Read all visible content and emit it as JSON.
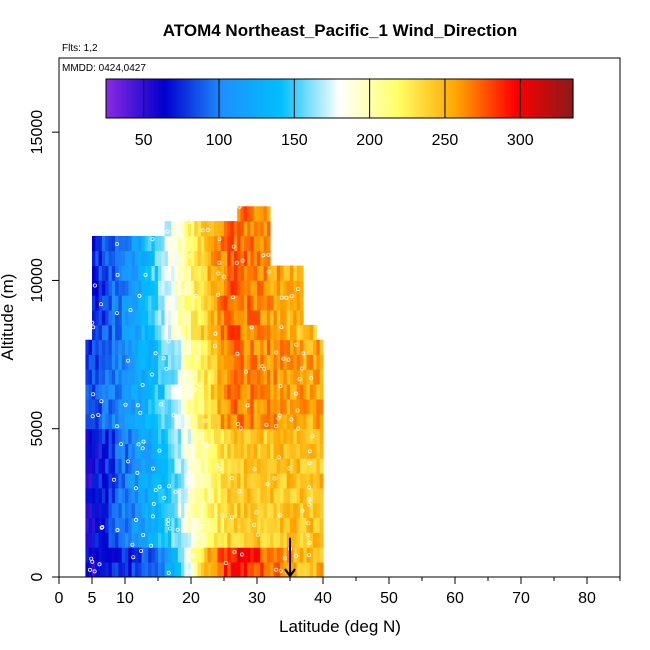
{
  "chart_data": {
    "type": "heatmap",
    "title": "ATOM4 Northeast_Pacific_1 Wind_Direction",
    "flights_note": "Flts: 1,2",
    "date_note": "MMDD: 0424,0427",
    "xlabel": "Latitude (deg N)",
    "ylabel": "Altitude (m)",
    "xlim": [
      0,
      85
    ],
    "ylim": [
      0,
      17500
    ],
    "x_ticks": [
      0,
      5,
      10,
      20,
      30,
      40,
      50,
      60,
      70,
      80
    ],
    "y_ticks": [
      0,
      5000,
      10000,
      15000
    ],
    "colorbar": {
      "range": [
        25,
        335
      ],
      "ticks": [
        50,
        100,
        150,
        200,
        250,
        300
      ],
      "colors": [
        "#8a2be2",
        "#0000cd",
        "#1e90ff",
        "#00bfff",
        "#ffffff",
        "#ffff66",
        "#ffa500",
        "#ff0000",
        "#8b1a1a"
      ]
    },
    "marker": {
      "type": "arrow-down",
      "x": 35,
      "y": 650
    },
    "field": {
      "altitude_max_by_latitude": [
        {
          "lat_range": [
            4,
            5
          ],
          "top": 8000
        },
        {
          "lat_range": [
            5,
            16
          ],
          "top": 11500
        },
        {
          "lat_range": [
            16,
            27
          ],
          "top": 12000
        },
        {
          "lat_range": [
            27,
            32
          ],
          "top": 12500
        },
        {
          "lat_range": [
            32,
            37
          ],
          "top": 10500
        },
        {
          "lat_range": [
            37,
            39
          ],
          "top": 8500
        },
        {
          "lat_range": [
            39,
            40
          ],
          "top": 8000
        }
      ],
      "description_by_band": [
        {
          "alt_range": [
            0,
            1000
          ],
          "values": [
            [
              5,
              60
            ],
            [
              15,
              90
            ],
            [
              20,
              190
            ],
            [
              23,
              260
            ],
            [
              27,
              300
            ],
            [
              36,
              250
            ]
          ]
        },
        {
          "alt_range": [
            1000,
            5000
          ],
          "values": [
            [
              5,
              60
            ],
            [
              12,
              110
            ],
            [
              17,
              150
            ],
            [
              21,
              200
            ],
            [
              26,
              240
            ],
            [
              34,
              245
            ]
          ]
        },
        {
          "alt_range": [
            5000,
            8000
          ],
          "values": [
            [
              5,
              80
            ],
            [
              12,
              120
            ],
            [
              17,
              160
            ],
            [
              21,
              215
            ],
            [
              26,
              270
            ],
            [
              37,
              255
            ]
          ]
        },
        {
          "alt_range": [
            8000,
            12500
          ],
          "values": [
            [
              5,
              70
            ],
            [
              12,
              120
            ],
            [
              17,
              180
            ],
            [
              21,
              230
            ],
            [
              26,
              275
            ],
            [
              37,
              245
            ]
          ]
        }
      ]
    }
  }
}
